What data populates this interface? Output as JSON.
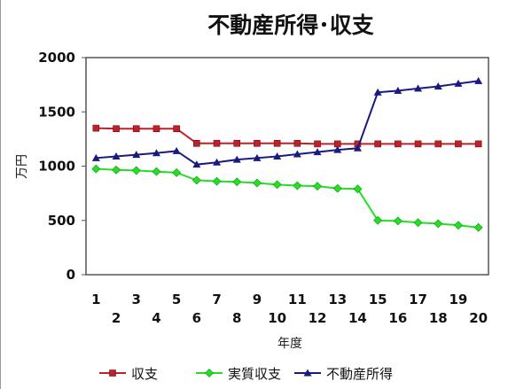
{
  "chart_data": {
    "type": "line",
    "title": "不動産所得･収支",
    "xlabel": "年度",
    "ylabel": "万円",
    "categories": [
      "1",
      "2",
      "3",
      "4",
      "5",
      "6",
      "7",
      "8",
      "9",
      "10",
      "11",
      "12",
      "13",
      "14",
      "15",
      "16",
      "17",
      "18",
      "19",
      "20"
    ],
    "ylim": [
      0,
      2000
    ],
    "yticks": [
      "0",
      "500",
      "1000",
      "1500",
      "2000"
    ],
    "grid": false,
    "legend_position": "bottom",
    "series": [
      {
        "name": "収支",
        "color": "#c0202a",
        "marker": "square",
        "values": [
          1350,
          1345,
          1345,
          1345,
          1345,
          1210,
          1210,
          1210,
          1210,
          1210,
          1210,
          1205,
          1205,
          1205,
          1205,
          1205,
          1205,
          1205,
          1205,
          1205
        ]
      },
      {
        "name": "実質収支",
        "color": "#22e022",
        "marker": "diamond",
        "values": [
          975,
          965,
          960,
          950,
          940,
          870,
          860,
          855,
          845,
          830,
          820,
          815,
          795,
          790,
          500,
          495,
          480,
          470,
          455,
          435
        ]
      },
      {
        "name": "不動産所得",
        "color": "#1a1a80",
        "marker": "triangle",
        "values": [
          1075,
          1090,
          1105,
          1120,
          1140,
          1015,
          1035,
          1060,
          1075,
          1090,
          1110,
          1130,
          1150,
          1165,
          1680,
          1695,
          1715,
          1735,
          1760,
          1785
        ]
      }
    ]
  }
}
